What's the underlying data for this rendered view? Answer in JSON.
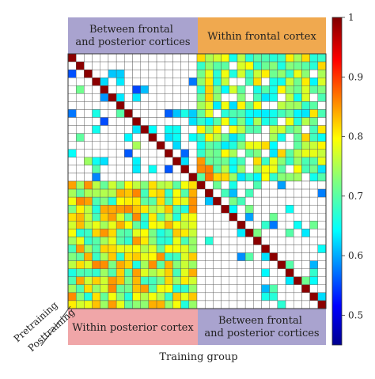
{
  "chart_data": {
    "type": "heatmap",
    "xlabel": "Training group",
    "corner_labels": {
      "upper_triangle": "Pretraining",
      "lower_triangle": "Posttraining"
    },
    "grid": true,
    "grid_size": 32,
    "region_labels": {
      "top_left": "Between frontal\nand posterior cortices",
      "top_right": "Within frontal cortex",
      "bottom_left": "Within posterior cortex",
      "bottom_right": "Between frontal\nand posterior cortices"
    },
    "region_colors": {
      "between": "#a9a3cf",
      "frontal": "#f0a94f",
      "posterior": "#f0a6a8"
    },
    "colorbar": {
      "min": 0.45,
      "max": 1.0,
      "ticks": [
        0.5,
        0.6,
        0.7,
        0.8,
        0.9,
        1
      ],
      "tick_labels": [
        "0.5",
        "0.6",
        "0.7",
        "0.8",
        "0.9",
        "1"
      ],
      "colormap": "jet"
    },
    "diagonal_value": 1.0,
    "threshold_display": 0.45
  }
}
